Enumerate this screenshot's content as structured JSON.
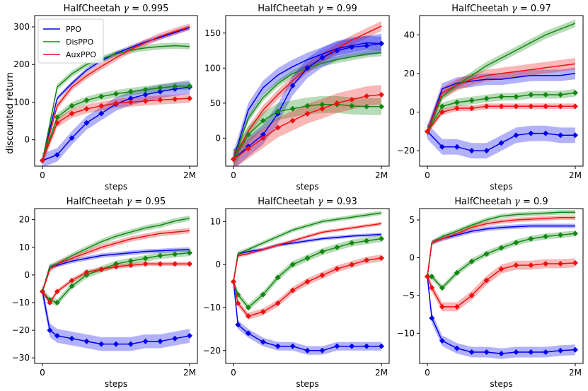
{
  "figure": {
    "ylabel": "discounted return",
    "legend_position": "top-left of first panel"
  },
  "colors": {
    "PPO": "#0000ee",
    "DisPPO": "#118811",
    "AuxPPO": "#ee1111"
  },
  "chart_data": [
    {
      "type": "line",
      "title_prefix": "HalfCheetah",
      "gamma": "0.995",
      "xlabel": "steps",
      "xticks": [
        "0",
        "2M"
      ],
      "ylim": [
        -70,
        330
      ],
      "yticks": [
        0,
        100,
        200,
        300
      ],
      "x": [
        0,
        0.1,
        0.2,
        0.3,
        0.4,
        0.5,
        0.6,
        0.7,
        0.8,
        0.9,
        1.0
      ],
      "series": [
        {
          "name": "PPO",
          "kind": "plain",
          "values": [
            -55,
            110,
            150,
            185,
            210,
            230,
            245,
            260,
            272,
            285,
            298
          ],
          "band": 6
        },
        {
          "name": "DisPPO",
          "kind": "plain",
          "values": [
            -55,
            140,
            175,
            200,
            215,
            228,
            238,
            244,
            248,
            250,
            248
          ],
          "band": 8
        },
        {
          "name": "AuxPPO",
          "kind": "plain",
          "values": [
            -55,
            90,
            140,
            170,
            195,
            218,
            240,
            258,
            275,
            288,
            300
          ],
          "band": 9
        },
        {
          "name": "PPO",
          "kind": "marked",
          "values": [
            -55,
            -40,
            5,
            45,
            70,
            95,
            110,
            120,
            128,
            135,
            140
          ],
          "band": 18
        },
        {
          "name": "DisPPO",
          "kind": "marked",
          "values": [
            -55,
            60,
            90,
            105,
            115,
            122,
            128,
            133,
            138,
            142,
            143
          ],
          "band": 10
        },
        {
          "name": "AuxPPO",
          "kind": "marked",
          "values": [
            -55,
            45,
            70,
            82,
            90,
            97,
            100,
            103,
            106,
            108,
            110
          ],
          "band": 12
        }
      ]
    },
    {
      "type": "line",
      "title_prefix": "HalfCheetah",
      "gamma": "0.99",
      "xlabel": "steps",
      "xticks": [
        "0",
        "2M"
      ],
      "ylim": [
        -40,
        175
      ],
      "yticks": [
        0,
        50,
        100,
        150
      ],
      "x": [
        0,
        0.1,
        0.2,
        0.3,
        0.4,
        0.5,
        0.6,
        0.7,
        0.8,
        0.9,
        1.0
      ],
      "series": [
        {
          "name": "PPO",
          "kind": "plain",
          "values": [
            -30,
            40,
            72,
            90,
            102,
            112,
            120,
            128,
            132,
            136,
            135
          ],
          "band": 10
        },
        {
          "name": "DisPPO",
          "kind": "plain",
          "values": [
            -30,
            28,
            58,
            78,
            92,
            100,
            107,
            112,
            116,
            120,
            122
          ],
          "band": 5
        },
        {
          "name": "AuxPPO",
          "kind": "plain",
          "values": [
            -30,
            10,
            40,
            62,
            82,
            100,
            115,
            128,
            140,
            150,
            160
          ],
          "band": 7
        },
        {
          "name": "PPO",
          "kind": "marked",
          "values": [
            -30,
            -12,
            5,
            35,
            75,
            100,
            115,
            125,
            130,
            132,
            135
          ],
          "band": 14
        },
        {
          "name": "DisPPO",
          "kind": "marked",
          "values": [
            -30,
            5,
            25,
            38,
            42,
            46,
            48,
            48,
            46,
            45,
            45
          ],
          "band": 12
        },
        {
          "name": "AuxPPO",
          "kind": "marked",
          "values": [
            -30,
            -15,
            0,
            15,
            25,
            35,
            42,
            50,
            55,
            60,
            62
          ],
          "band": 14
        }
      ]
    },
    {
      "type": "line",
      "title_prefix": "HalfCheetah",
      "gamma": "0.97",
      "xlabel": "steps",
      "xticks": [
        "0",
        "2M"
      ],
      "ylim": [
        -28,
        50
      ],
      "yticks": [
        -20,
        0,
        20,
        40
      ],
      "x": [
        0,
        0.1,
        0.2,
        0.3,
        0.4,
        0.5,
        0.6,
        0.7,
        0.8,
        0.9,
        1.0
      ],
      "series": [
        {
          "name": "PPO",
          "kind": "plain",
          "values": [
            -10,
            12,
            15,
            16,
            17,
            17,
            18,
            19,
            19,
            19,
            20
          ],
          "band": 3
        },
        {
          "name": "DisPPO",
          "kind": "plain",
          "values": [
            -10,
            8,
            14,
            19,
            24,
            28,
            32,
            36,
            40,
            43,
            46
          ],
          "band": 2
        },
        {
          "name": "AuxPPO",
          "kind": "plain",
          "values": [
            -10,
            10,
            14,
            17,
            19,
            20,
            21,
            22,
            23,
            24,
            25
          ],
          "band": 3
        },
        {
          "name": "PPO",
          "kind": "marked",
          "values": [
            -10,
            -18,
            -18,
            -20,
            -20,
            -16,
            -12,
            -11,
            -11,
            -12,
            -12
          ],
          "band": 4
        },
        {
          "name": "DisPPO",
          "kind": "marked",
          "values": [
            -10,
            3,
            5,
            6,
            7,
            8,
            8,
            9,
            9,
            9,
            10
          ],
          "band": 2
        },
        {
          "name": "AuxPPO",
          "kind": "marked",
          "values": [
            -10,
            0,
            2,
            2,
            3,
            3,
            3,
            3,
            3,
            3,
            3
          ],
          "band": 1.5
        }
      ]
    },
    {
      "type": "line",
      "title_prefix": "HalfCheetah",
      "gamma": "0.95",
      "xlabel": "steps",
      "xticks": [
        "0",
        "2M"
      ],
      "ylim": [
        -32,
        24
      ],
      "yticks": [
        -30,
        -20,
        -10,
        0,
        10,
        20
      ],
      "x": [
        0,
        0.05,
        0.1,
        0.2,
        0.3,
        0.4,
        0.5,
        0.6,
        0.7,
        0.8,
        0.9,
        1.0
      ],
      "series": [
        {
          "name": "PPO",
          "kind": "plain",
          "values": [
            -6,
            3,
            3.5,
            5,
            6,
            7,
            7.5,
            8,
            8.5,
            8.7,
            9,
            9.2
          ],
          "band": 0.8
        },
        {
          "name": "DisPPO",
          "kind": "plain",
          "values": [
            -6,
            3,
            4,
            7,
            9.5,
            12,
            14,
            15.5,
            17,
            18,
            19.5,
            20.5
          ],
          "band": 1
        },
        {
          "name": "AuxPPO",
          "kind": "plain",
          "values": [
            -6,
            2,
            4,
            6,
            8,
            10,
            11.5,
            13,
            14,
            15,
            15.5,
            16
          ],
          "band": 1
        },
        {
          "name": "PPO",
          "kind": "marked",
          "values": [
            -6,
            -20,
            -22,
            -23,
            -24,
            -25,
            -25,
            -25,
            -24,
            -24,
            -23,
            -22
          ],
          "band": 2.5
        },
        {
          "name": "DisPPO",
          "kind": "marked",
          "values": [
            -6,
            -9,
            -10,
            -4,
            0,
            2,
            4,
            5,
            6,
            7,
            7.5,
            8
          ],
          "band": 1.2
        },
        {
          "name": "AuxPPO",
          "kind": "marked",
          "values": [
            -6,
            -10,
            -6,
            -2,
            1,
            2,
            3,
            3.5,
            4,
            4,
            4,
            4
          ],
          "band": 0.8
        }
      ]
    },
    {
      "type": "line",
      "title_prefix": "HalfCheetah",
      "gamma": "0.93",
      "xlabel": "steps",
      "xticks": [
        "0",
        "2M"
      ],
      "ylim": [
        -23,
        13
      ],
      "yticks": [
        -20,
        -10,
        0,
        10
      ],
      "x": [
        0,
        0.03,
        0.1,
        0.2,
        0.3,
        0.4,
        0.5,
        0.6,
        0.7,
        0.8,
        0.9,
        1.0
      ],
      "series": [
        {
          "name": "PPO",
          "kind": "plain",
          "values": [
            -4,
            2.5,
            3,
            3.5,
            4.5,
            5,
            5.5,
            6,
            6.3,
            6.6,
            6.8,
            7
          ],
          "band": 0.4
        },
        {
          "name": "DisPPO",
          "kind": "plain",
          "values": [
            -4,
            2.5,
            3.5,
            5,
            6.5,
            8,
            9,
            10,
            10.5,
            11,
            11.5,
            12
          ],
          "band": 0.5
        },
        {
          "name": "AuxPPO",
          "kind": "plain",
          "values": [
            -4,
            2,
            2.5,
            3.5,
            4.5,
            5.5,
            6.5,
            7.5,
            8,
            8.5,
            9,
            9.5
          ],
          "band": 0.4
        },
        {
          "name": "PPO",
          "kind": "marked",
          "values": [
            -4,
            -14,
            -16,
            -18,
            -19,
            -19,
            -20,
            -20,
            -19,
            -19,
            -19,
            -19
          ],
          "band": 1
        },
        {
          "name": "DisPPO",
          "kind": "marked",
          "values": [
            -4,
            -7,
            -10,
            -7,
            -3,
            0,
            1.5,
            3,
            4,
            5,
            5.5,
            6
          ],
          "band": 0.8
        },
        {
          "name": "AuxPPO",
          "kind": "marked",
          "values": [
            -4,
            -9,
            -12,
            -11,
            -9,
            -6,
            -4,
            -2.5,
            -1,
            0,
            1,
            1.5
          ],
          "band": 0.8
        }
      ]
    },
    {
      "type": "line",
      "title_prefix": "HalfCheetah",
      "gamma": "0.9",
      "xlabel": "steps",
      "xticks": [
        "0",
        "2M"
      ],
      "ylim": [
        -14,
        6.5
      ],
      "yticks": [
        -10,
        -5,
        0,
        5
      ],
      "x": [
        0,
        0.03,
        0.1,
        0.2,
        0.3,
        0.4,
        0.5,
        0.6,
        0.7,
        0.8,
        0.9,
        1.0
      ],
      "series": [
        {
          "name": "PPO",
          "kind": "plain",
          "values": [
            -2.5,
            2,
            2.5,
            3,
            3.5,
            3.8,
            4,
            4.1,
            4.2,
            4.2,
            4.2,
            4.2
          ],
          "band": 0.3
        },
        {
          "name": "DisPPO",
          "kind": "plain",
          "values": [
            -2.5,
            2,
            2.8,
            3.5,
            4.3,
            5,
            5.5,
            5.7,
            5.8,
            5.9,
            6,
            6
          ],
          "band": 0.3
        },
        {
          "name": "AuxPPO",
          "kind": "plain",
          "values": [
            -2.5,
            2,
            2.5,
            3.2,
            4,
            4.5,
            4.8,
            5,
            5.1,
            5.2,
            5.3,
            5.3
          ],
          "band": 0.3
        },
        {
          "name": "PPO",
          "kind": "marked",
          "values": [
            -2.5,
            -8,
            -11,
            -12,
            -12.5,
            -12.5,
            -12.7,
            -12.5,
            -12.5,
            -12.5,
            -12.3,
            -12.2
          ],
          "band": 0.7
        },
        {
          "name": "DisPPO",
          "kind": "marked",
          "values": [
            -2.5,
            -2.5,
            -4,
            -2,
            -0.5,
            0.5,
            1.3,
            2,
            2.5,
            2.8,
            3,
            3.2
          ],
          "band": 0.4
        },
        {
          "name": "AuxPPO",
          "kind": "marked",
          "values": [
            -2.5,
            -4,
            -6.5,
            -6.5,
            -5,
            -3,
            -1.5,
            -1,
            -1,
            -0.8,
            -0.8,
            -0.7
          ],
          "band": 0.6
        }
      ]
    }
  ]
}
